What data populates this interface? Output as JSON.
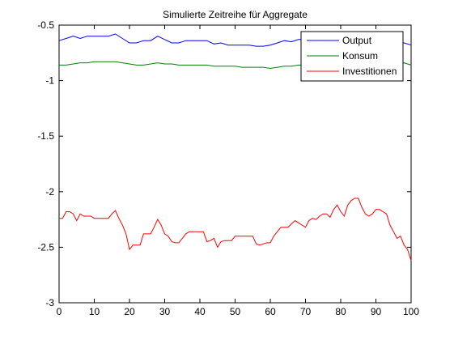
{
  "chart_data": {
    "type": "line",
    "title": "Simulierte Zeitreihe für Aggregate",
    "xlabel": "",
    "ylabel": "",
    "xlim": [
      0,
      100
    ],
    "ylim": [
      -3,
      -0.5
    ],
    "xticks": [
      0,
      10,
      20,
      30,
      40,
      50,
      60,
      70,
      80,
      90,
      100
    ],
    "yticks": [
      -0.5,
      -1,
      -1.5,
      -2,
      -2.5,
      -3
    ],
    "xtick_labels": [
      "0",
      "10",
      "20",
      "30",
      "40",
      "50",
      "60",
      "70",
      "80",
      "90",
      "100"
    ],
    "ytick_labels": [
      "-0.5",
      "-1",
      "-1.5",
      "-2",
      "-2.5",
      "-3"
    ],
    "grid": false,
    "legend_position": "top-right",
    "series": [
      {
        "name": "Output",
        "color": "#0000ff",
        "x": [
          0,
          2,
          4,
          6,
          8,
          10,
          12,
          14,
          16,
          18,
          20,
          22,
          24,
          26,
          28,
          30,
          32,
          34,
          36,
          38,
          40,
          42,
          44,
          46,
          48,
          50,
          52,
          54,
          56,
          58,
          60,
          62,
          64,
          66,
          68,
          70,
          72,
          74,
          76,
          78,
          80,
          82,
          84,
          86,
          88,
          90,
          92,
          94,
          96,
          98,
          100
        ],
        "values": [
          -0.64,
          -0.62,
          -0.6,
          -0.62,
          -0.6,
          -0.6,
          -0.6,
          -0.6,
          -0.58,
          -0.62,
          -0.66,
          -0.66,
          -0.64,
          -0.64,
          -0.6,
          -0.63,
          -0.66,
          -0.66,
          -0.64,
          -0.64,
          -0.64,
          -0.64,
          -0.67,
          -0.66,
          -0.68,
          -0.68,
          -0.68,
          -0.68,
          -0.69,
          -0.69,
          -0.68,
          -0.66,
          -0.64,
          -0.65,
          -0.63,
          -0.63,
          -0.61,
          -0.6,
          -0.61,
          -0.6,
          -0.59,
          -0.57,
          -0.58,
          -0.6,
          -0.6,
          -0.61,
          -0.62,
          -0.63,
          -0.65,
          -0.66,
          -0.68
        ]
      },
      {
        "name": "Konsum",
        "color": "#008000",
        "x": [
          0,
          2,
          4,
          6,
          8,
          10,
          12,
          14,
          16,
          18,
          20,
          22,
          24,
          26,
          28,
          30,
          32,
          34,
          36,
          38,
          40,
          42,
          44,
          46,
          48,
          50,
          52,
          54,
          56,
          58,
          60,
          62,
          64,
          66,
          68,
          70,
          72,
          74,
          76,
          78,
          80,
          82,
          84,
          86,
          88,
          90,
          92,
          94,
          96,
          98,
          100
        ],
        "values": [
          -0.86,
          -0.86,
          -0.85,
          -0.84,
          -0.84,
          -0.83,
          -0.83,
          -0.83,
          -0.83,
          -0.84,
          -0.85,
          -0.86,
          -0.86,
          -0.85,
          -0.84,
          -0.85,
          -0.85,
          -0.86,
          -0.86,
          -0.86,
          -0.86,
          -0.86,
          -0.87,
          -0.87,
          -0.87,
          -0.87,
          -0.88,
          -0.88,
          -0.88,
          -0.88,
          -0.89,
          -0.88,
          -0.87,
          -0.87,
          -0.86,
          -0.86,
          -0.85,
          -0.85,
          -0.85,
          -0.85,
          -0.84,
          -0.83,
          -0.83,
          -0.84,
          -0.84,
          -0.84,
          -0.84,
          -0.85,
          -0.85,
          -0.84,
          -0.86
        ]
      },
      {
        "name": "Investitionen",
        "color": "#ff0000",
        "x": [
          0,
          1,
          2,
          3,
          4,
          5,
          6,
          7,
          8,
          9,
          10,
          11,
          12,
          13,
          14,
          15,
          16,
          17,
          18,
          19,
          20,
          21,
          22,
          23,
          24,
          25,
          26,
          27,
          28,
          29,
          30,
          31,
          32,
          33,
          34,
          35,
          36,
          37,
          38,
          39,
          40,
          41,
          42,
          43,
          44,
          45,
          46,
          47,
          48,
          49,
          50,
          51,
          52,
          53,
          54,
          55,
          56,
          57,
          58,
          59,
          60,
          61,
          62,
          63,
          64,
          65,
          66,
          67,
          68,
          69,
          70,
          71,
          72,
          73,
          74,
          75,
          76,
          77,
          78,
          79,
          80,
          81,
          82,
          83,
          84,
          85,
          86,
          87,
          88,
          89,
          90,
          91,
          92,
          93,
          94,
          95,
          96,
          97,
          98,
          99,
          100
        ],
        "values": [
          -2.24,
          -2.24,
          -2.18,
          -2.18,
          -2.2,
          -2.26,
          -2.2,
          -2.22,
          -2.22,
          -2.22,
          -2.24,
          -2.24,
          -2.24,
          -2.24,
          -2.24,
          -2.2,
          -2.17,
          -2.24,
          -2.3,
          -2.38,
          -2.52,
          -2.48,
          -2.48,
          -2.48,
          -2.38,
          -2.38,
          -2.38,
          -2.32,
          -2.25,
          -2.3,
          -2.38,
          -2.4,
          -2.45,
          -2.46,
          -2.46,
          -2.42,
          -2.38,
          -2.36,
          -2.36,
          -2.36,
          -2.36,
          -2.36,
          -2.45,
          -2.44,
          -2.42,
          -2.5,
          -2.45,
          -2.44,
          -2.44,
          -2.44,
          -2.4,
          -2.4,
          -2.4,
          -2.4,
          -2.4,
          -2.4,
          -2.47,
          -2.48,
          -2.47,
          -2.46,
          -2.46,
          -2.4,
          -2.36,
          -2.32,
          -2.32,
          -2.32,
          -2.29,
          -2.26,
          -2.28,
          -2.3,
          -2.32,
          -2.26,
          -2.24,
          -2.25,
          -2.22,
          -2.2,
          -2.2,
          -2.23,
          -2.16,
          -2.12,
          -2.18,
          -2.22,
          -2.12,
          -2.08,
          -2.06,
          -2.06,
          -2.14,
          -2.2,
          -2.22,
          -2.2,
          -2.16,
          -2.16,
          -2.18,
          -2.2,
          -2.3,
          -2.36,
          -2.42,
          -2.4,
          -2.48,
          -2.52,
          -2.62
        ]
      }
    ]
  }
}
